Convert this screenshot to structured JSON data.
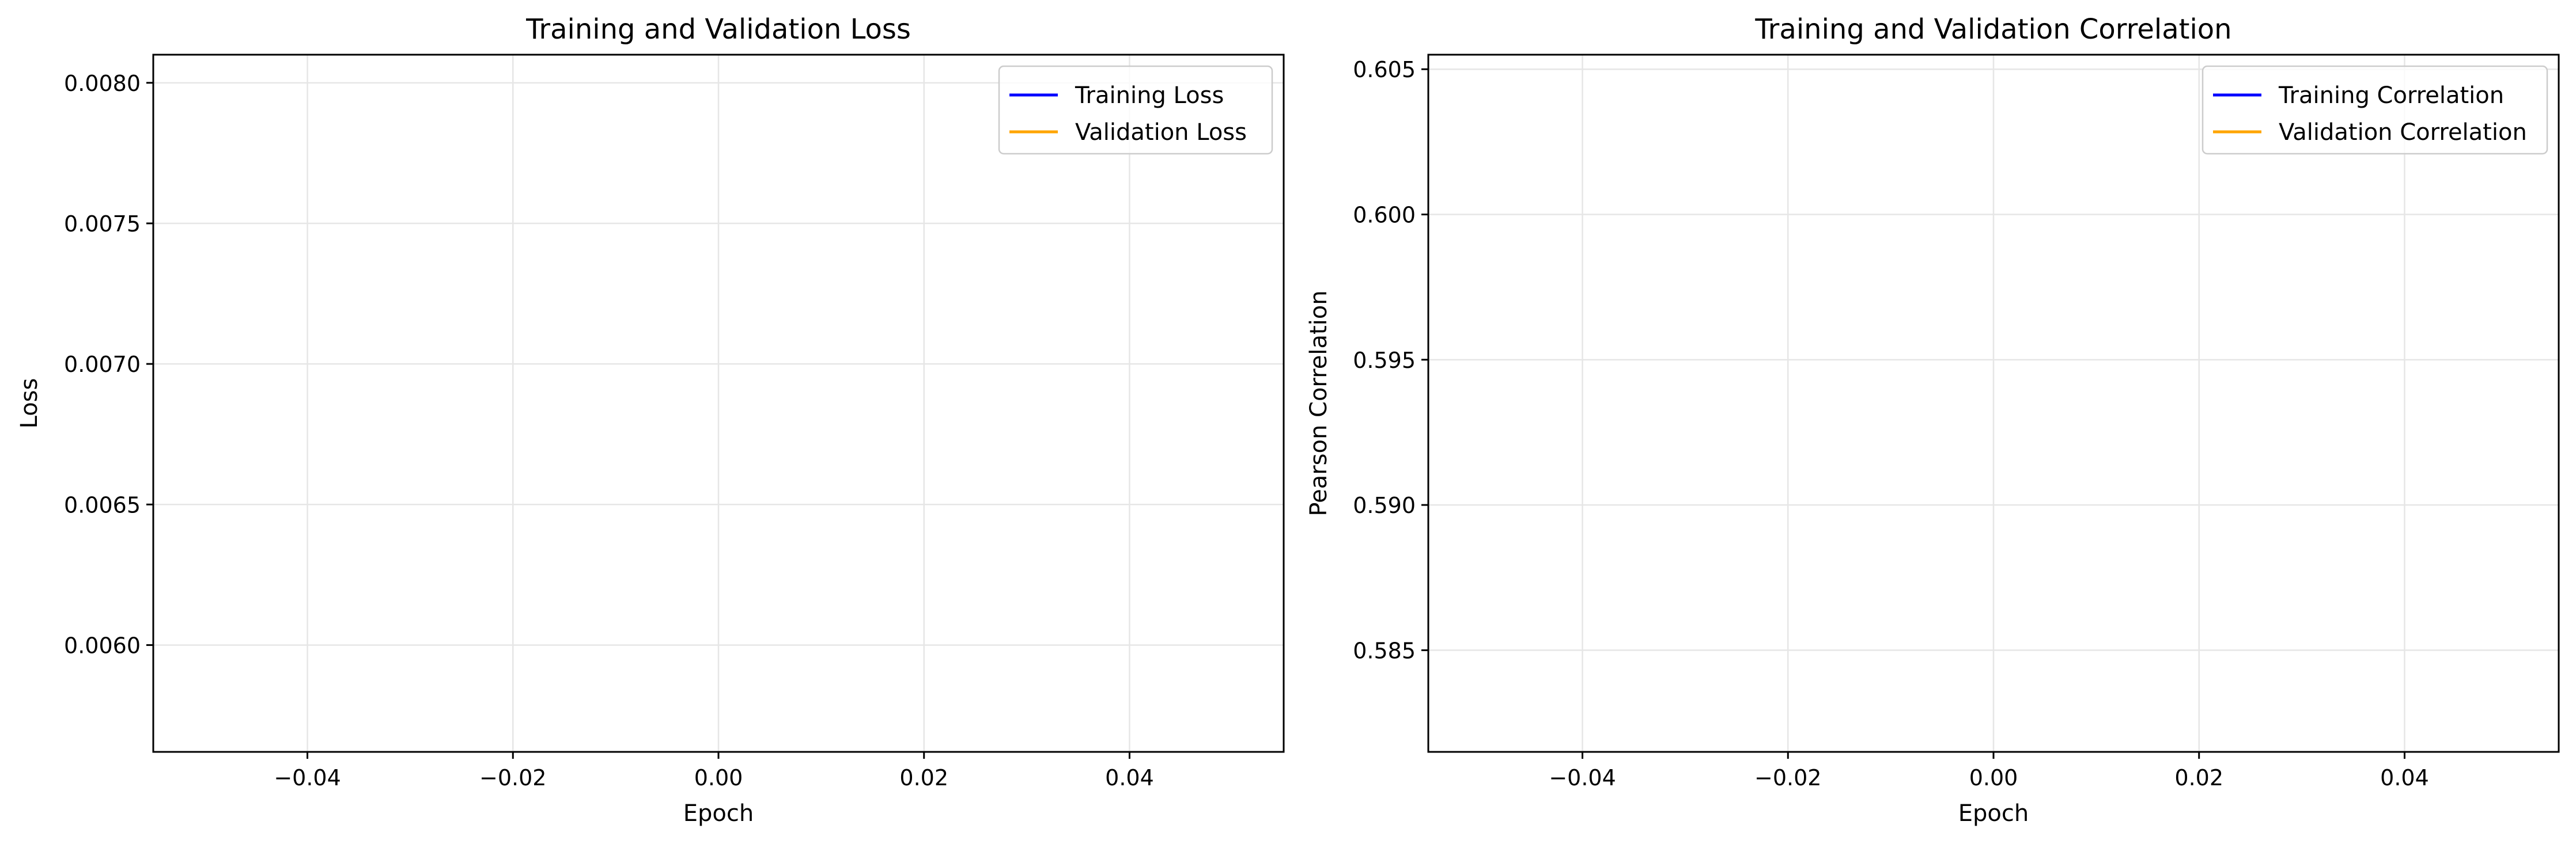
{
  "chart_data": [
    {
      "type": "line",
      "title": "Training and Validation Loss",
      "xlabel": "Epoch",
      "ylabel": "Loss",
      "xlim": [
        -0.055,
        0.055
      ],
      "ylim": [
        0.00562,
        0.0081
      ],
      "xticks": [
        -0.04,
        -0.02,
        0.0,
        0.02,
        0.04
      ],
      "xtick_labels": [
        "−0.04",
        "−0.02",
        "0.00",
        "0.02",
        "0.04"
      ],
      "yticks": [
        0.006,
        0.0065,
        0.007,
        0.0075,
        0.008
      ],
      "ytick_labels": [
        "0.0060",
        "0.0065",
        "0.0070",
        "0.0075",
        "0.0080"
      ],
      "grid": true,
      "legend_position": "top-right",
      "series": [
        {
          "name": "Training Loss",
          "color": "#0000ff",
          "x": [],
          "y": []
        },
        {
          "name": "Validation Loss",
          "color": "#ffa500",
          "x": [],
          "y": []
        }
      ]
    },
    {
      "type": "line",
      "title": "Training and Validation Correlation",
      "xlabel": "Epoch",
      "ylabel": "Pearson Correlation",
      "xlim": [
        -0.055,
        0.055
      ],
      "ylim": [
        0.5815,
        0.6055
      ],
      "xticks": [
        -0.04,
        -0.02,
        0.0,
        0.02,
        0.04
      ],
      "xtick_labels": [
        "−0.04",
        "−0.02",
        "0.00",
        "0.02",
        "0.04"
      ],
      "yticks": [
        0.585,
        0.59,
        0.595,
        0.6,
        0.605
      ],
      "ytick_labels": [
        "0.585",
        "0.590",
        "0.595",
        "0.600",
        "0.605"
      ],
      "grid": true,
      "legend_position": "top-right",
      "series": [
        {
          "name": "Training Correlation",
          "color": "#0000ff",
          "x": [],
          "y": []
        },
        {
          "name": "Validation Correlation",
          "color": "#ffa500",
          "x": [],
          "y": []
        }
      ]
    }
  ]
}
